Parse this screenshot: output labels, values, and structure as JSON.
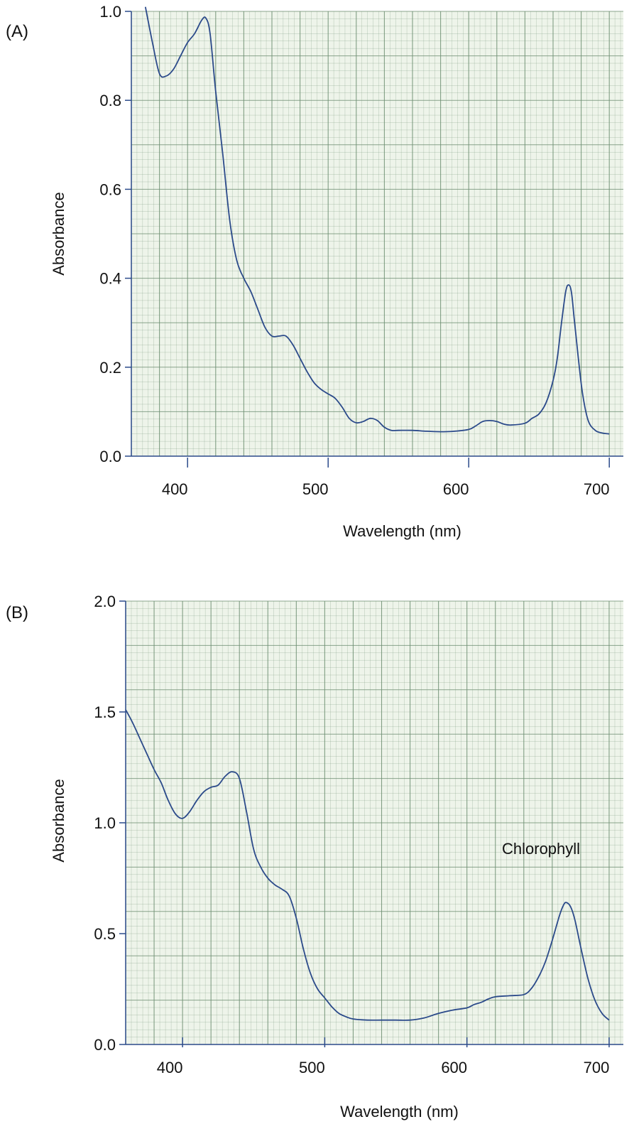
{
  "chart_data": [
    {
      "type": "line",
      "panel_label": "(A)",
      "xlabel": "Wavelength (nm)",
      "ylabel": "Absorbance",
      "xlim": [
        360,
        710
      ],
      "ylim": [
        0.0,
        1.0
      ],
      "x_ticks": [
        "400",
        "500",
        "600",
        "700"
      ],
      "y_ticks": [
        "0.0",
        "0.2",
        "0.4",
        "0.6",
        "0.8",
        "1.0"
      ],
      "grid": true,
      "line_color": "#2b4a8a",
      "grid_color": "#6f8f73",
      "background_color": "#eef4ea",
      "series": [
        {
          "x": [
            370,
            375,
            380,
            385,
            390,
            395,
            400,
            405,
            410,
            413,
            416,
            420,
            425,
            430,
            435,
            440,
            445,
            450,
            455,
            460,
            465,
            470,
            475,
            480,
            485,
            490,
            495,
            500,
            505,
            510,
            515,
            520,
            525,
            530,
            535,
            540,
            545,
            550,
            560,
            570,
            580,
            590,
            600,
            605,
            610,
            615,
            620,
            625,
            630,
            640,
            645,
            650,
            655,
            660,
            663,
            666,
            669,
            671,
            673,
            675,
            678,
            681,
            685,
            690,
            695,
            700
          ],
          "y": [
            1.01,
            0.93,
            0.86,
            0.855,
            0.87,
            0.9,
            0.93,
            0.95,
            0.98,
            0.985,
            0.95,
            0.82,
            0.68,
            0.53,
            0.44,
            0.4,
            0.37,
            0.33,
            0.29,
            0.27,
            0.27,
            0.27,
            0.25,
            0.22,
            0.19,
            0.165,
            0.15,
            0.14,
            0.13,
            0.11,
            0.085,
            0.075,
            0.078,
            0.085,
            0.08,
            0.065,
            0.058,
            0.058,
            0.058,
            0.056,
            0.055,
            0.056,
            0.06,
            0.068,
            0.078,
            0.08,
            0.078,
            0.072,
            0.07,
            0.074,
            0.085,
            0.095,
            0.12,
            0.17,
            0.22,
            0.3,
            0.37,
            0.385,
            0.37,
            0.31,
            0.22,
            0.14,
            0.08,
            0.058,
            0.052,
            0.05
          ]
        }
      ]
    },
    {
      "type": "line",
      "panel_label": "(B)",
      "xlabel": "Wavelength (nm)",
      "ylabel": "Absorbance",
      "xlim": [
        360,
        710
      ],
      "ylim": [
        0.0,
        2.0
      ],
      "x_ticks": [
        "400",
        "500",
        "600",
        "700"
      ],
      "y_ticks": [
        "0.0",
        "0.5",
        "1.0",
        "1.5",
        "2.0"
      ],
      "grid": true,
      "annotation": "Chlorophyll",
      "line_color": "#2b4a8a",
      "grid_color": "#6f8f73",
      "background_color": "#eef4ea",
      "series": [
        {
          "x": [
            360,
            365,
            370,
            375,
            380,
            385,
            390,
            395,
            400,
            405,
            410,
            415,
            420,
            425,
            430,
            435,
            440,
            445,
            450,
            455,
            460,
            465,
            470,
            475,
            480,
            485,
            490,
            495,
            500,
            505,
            510,
            515,
            520,
            530,
            540,
            550,
            560,
            570,
            580,
            590,
            600,
            605,
            610,
            615,
            620,
            630,
            640,
            645,
            650,
            655,
            660,
            665,
            668,
            670,
            673,
            676,
            680,
            685,
            690,
            695,
            700
          ],
          "y": [
            1.51,
            1.45,
            1.38,
            1.31,
            1.24,
            1.18,
            1.1,
            1.04,
            1.02,
            1.05,
            1.1,
            1.14,
            1.16,
            1.17,
            1.21,
            1.23,
            1.2,
            1.05,
            0.88,
            0.8,
            0.75,
            0.72,
            0.7,
            0.67,
            0.57,
            0.43,
            0.32,
            0.25,
            0.21,
            0.17,
            0.14,
            0.125,
            0.115,
            0.11,
            0.11,
            0.11,
            0.11,
            0.12,
            0.14,
            0.155,
            0.165,
            0.18,
            0.19,
            0.205,
            0.215,
            0.22,
            0.225,
            0.25,
            0.3,
            0.37,
            0.47,
            0.58,
            0.63,
            0.64,
            0.62,
            0.56,
            0.44,
            0.3,
            0.2,
            0.14,
            0.11
          ]
        }
      ]
    }
  ]
}
